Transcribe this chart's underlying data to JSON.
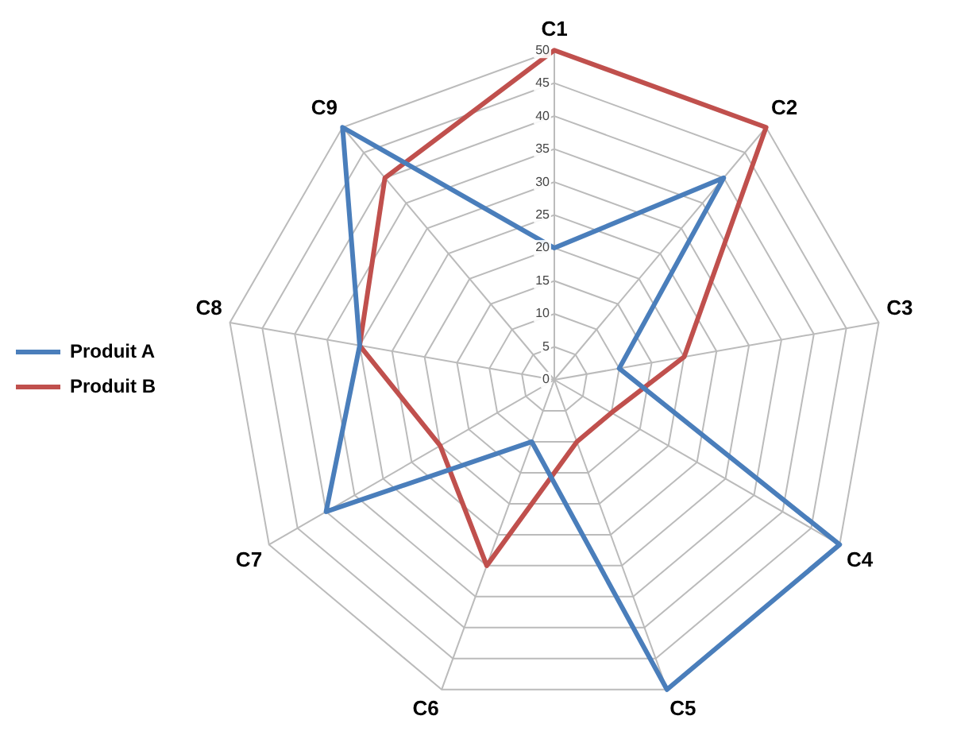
{
  "chart_data": {
    "type": "radar",
    "categories": [
      "C1",
      "C2",
      "C3",
      "C4",
      "C5",
      "C6",
      "C7",
      "C8",
      "C9"
    ],
    "series": [
      {
        "name": "Produit A",
        "color": "#4a7ebb",
        "values": [
          20,
          40,
          10,
          50,
          50,
          10,
          40,
          30,
          50
        ]
      },
      {
        "name": "Produit B",
        "color": "#c0504d",
        "values": [
          50,
          50,
          20,
          10,
          10,
          30,
          20,
          30,
          40
        ]
      }
    ],
    "ylim": [
      0,
      50
    ],
    "yticks": [
      0,
      5,
      10,
      15,
      20,
      25,
      30,
      35,
      40,
      45,
      50
    ],
    "grid": true,
    "legend": "left",
    "marker": "none",
    "line_style": "solid"
  }
}
